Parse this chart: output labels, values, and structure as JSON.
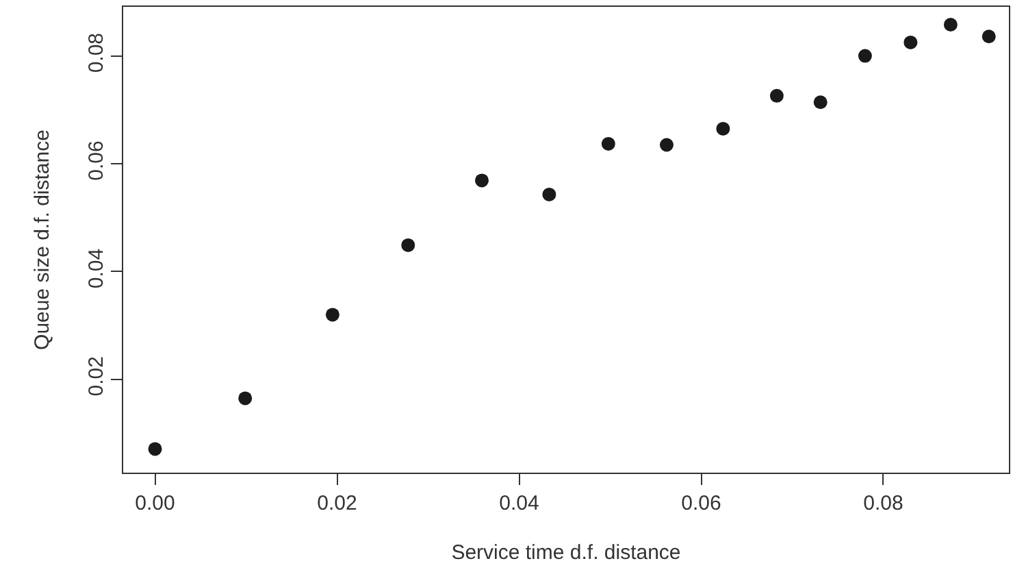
{
  "chart_data": {
    "type": "scatter",
    "xlabel": "Service time d.f. distance",
    "ylabel": "Queue size d.f. distance",
    "x": [
      0.0,
      0.0099,
      0.0195,
      0.0278,
      0.0359,
      0.0433,
      0.0498,
      0.0562,
      0.0624,
      0.0683,
      0.0731,
      0.078,
      0.083,
      0.0874,
      0.0916
    ],
    "series": [
      {
        "color": "#1a1a1a",
        "values": [
          0.0071,
          0.0165,
          0.032,
          0.0449,
          0.0569,
          0.0543,
          0.0637,
          0.0635,
          0.0665,
          0.0726,
          0.0714,
          0.08,
          0.0825,
          0.0858,
          0.0836
        ]
      }
    ],
    "xlim": [
      -0.0035,
      0.0938
    ],
    "ylim": [
      0.0027,
      0.0891
    ],
    "xticks": [
      {
        "value": 0,
        "label": "0.00"
      },
      0.02,
      0.04,
      0.06,
      0.08
    ],
    "yticks": [
      0.02,
      0.04,
      0.06,
      0.08
    ],
    "marker": "circle"
  }
}
